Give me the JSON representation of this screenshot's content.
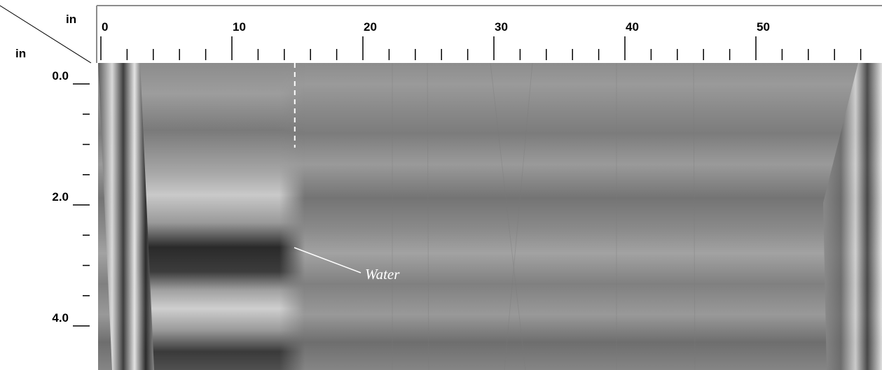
{
  "corner": {
    "top_unit": "in",
    "left_unit": "in"
  },
  "horizontal_axis": {
    "unit": "in",
    "labels": [
      "0",
      "10",
      "20",
      "30",
      "40",
      "50"
    ],
    "major_values": [
      0,
      10,
      20,
      30,
      40,
      50
    ],
    "minor_step": 2,
    "max": 58
  },
  "vertical_axis": {
    "unit": "in",
    "labels": [
      "0.0",
      "2.0",
      "4.0"
    ],
    "major_values": [
      0,
      2,
      4
    ],
    "minor_step": 0.5,
    "max": 4.0
  },
  "scan": {
    "colormap": "grayscale",
    "background": "#8a8a8a",
    "marker_position_in": 14.8,
    "marker_depth_in": 1.4
  },
  "annotation": {
    "text": "Water"
  }
}
